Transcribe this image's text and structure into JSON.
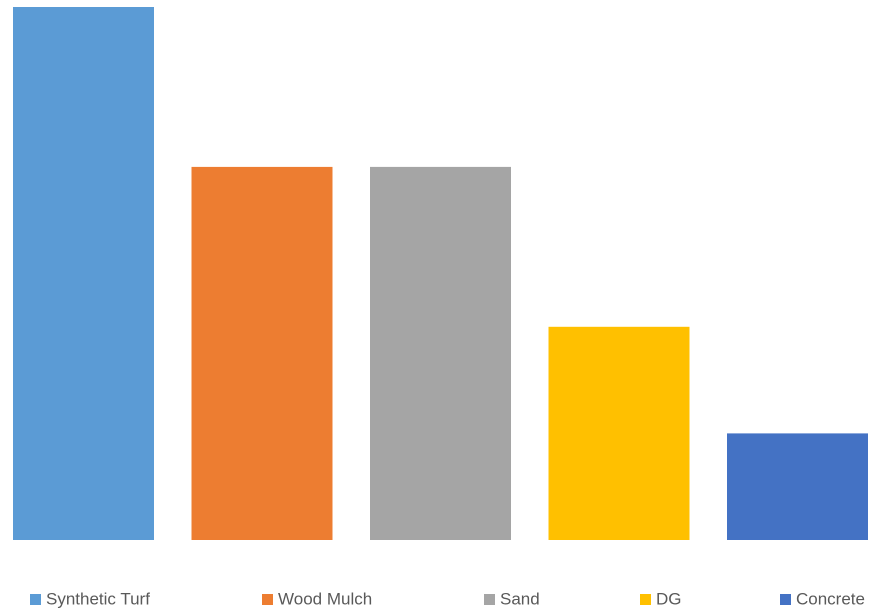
{
  "chart_data": {
    "type": "bar",
    "title": "",
    "xlabel": "",
    "ylabel": "",
    "ylim": [
      0,
      10
    ],
    "grid": false,
    "legend_position": "bottom",
    "categories": [
      "Synthetic Turf",
      "Wood Mulch",
      "Sand",
      "DG",
      "Concrete"
    ],
    "values": [
      10,
      7,
      7,
      4,
      2
    ],
    "colors": [
      "#5B9BD5",
      "#ED7D31",
      "#A5A5A5",
      "#FFC000",
      "#4472C4"
    ]
  }
}
